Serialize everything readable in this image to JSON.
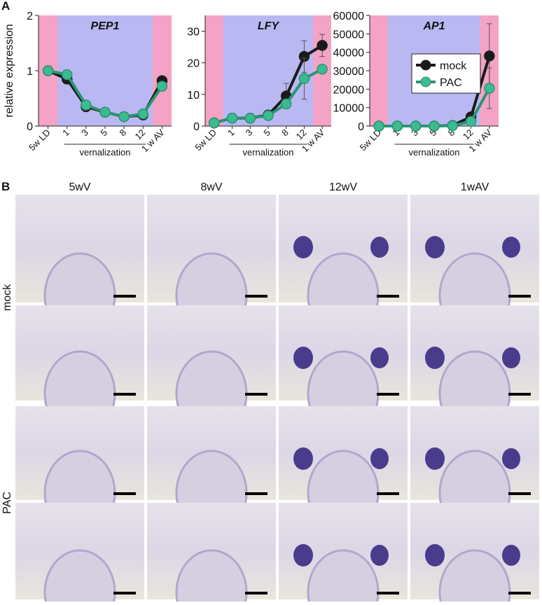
{
  "panel_a_label": "A",
  "chart_data": [
    {
      "type": "line",
      "title": "PEP1",
      "y_label": "relative expression",
      "group_label": "vernalization",
      "categories": [
        "5w LD",
        "1",
        "3",
        "5",
        "8",
        "12",
        "1 w AV"
      ],
      "ylim": [
        0,
        2
      ],
      "yticks": [
        0,
        1,
        2
      ],
      "series": [
        {
          "name": "mock",
          "color": "#1a1a1a",
          "values": [
            1.0,
            0.85,
            0.35,
            0.25,
            0.17,
            0.2,
            0.82
          ]
        },
        {
          "name": "PAC",
          "color": "#2a9474",
          "values": [
            1.0,
            0.93,
            0.38,
            0.25,
            0.17,
            0.22,
            0.72
          ]
        }
      ]
    },
    {
      "type": "line",
      "title": "LFY",
      "group_label": "vernalization",
      "categories": [
        "5w LD",
        "1",
        "3",
        "5",
        "8",
        "12",
        "1 w AV"
      ],
      "ylim": [
        0,
        35
      ],
      "yticks": [
        0,
        10,
        20,
        30
      ],
      "series": [
        {
          "name": "mock",
          "color": "#1a1a1a",
          "values": [
            1,
            2.5,
            2.5,
            3.5,
            9.5,
            22,
            25.5
          ],
          "errors": [
            null,
            null,
            null,
            null,
            4,
            5,
            3.5
          ]
        },
        {
          "name": "PAC",
          "color": "#2a9474",
          "values": [
            1,
            2.5,
            2.5,
            3.3,
            7,
            15,
            18
          ],
          "errors": [
            null,
            null,
            null,
            null,
            null,
            6.5,
            null
          ]
        }
      ]
    },
    {
      "type": "line",
      "title": "AP1",
      "group_label": "vernalization",
      "legend": "center-right",
      "categories": [
        "5w LD",
        "1",
        "3",
        "5",
        "8",
        "12",
        "1 w AV"
      ],
      "ylim": [
        0,
        60000
      ],
      "yticks": [
        0,
        10000,
        20000,
        30000,
        40000,
        50000,
        60000
      ],
      "series": [
        {
          "name": "mock",
          "color": "#1a1a1a",
          "values": [
            0,
            0,
            0,
            0,
            300,
            5000,
            38000
          ],
          "errors": [
            null,
            null,
            null,
            null,
            null,
            null,
            17500
          ]
        },
        {
          "name": "PAC",
          "color": "#2a9474",
          "values": [
            0,
            0,
            0,
            0,
            200,
            2500,
            20500
          ],
          "errors": [
            null,
            null,
            null,
            null,
            null,
            null,
            11000
          ]
        }
      ]
    }
  ],
  "panel_b": {
    "label": "B",
    "columns": [
      "5wV",
      "8wV",
      "12wV",
      "1wAV"
    ],
    "rows": [
      "mock",
      "PAC"
    ]
  }
}
